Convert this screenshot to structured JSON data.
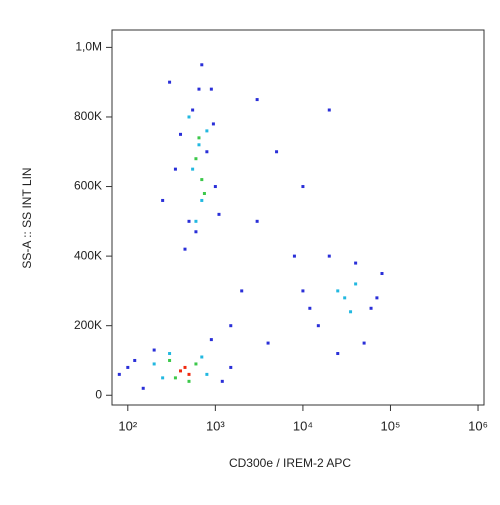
{
  "chart_data": {
    "type": "scatter",
    "x_label": "CD300e / IREM-2 APC",
    "y_label": "SS-A :: SS INT LIN",
    "x_scale": "log",
    "grid": false,
    "xlim": [
      66,
      1170000
    ],
    "ylim": [
      -28000,
      1050000
    ],
    "xticks": [
      {
        "value": 100,
        "label": "10²"
      },
      {
        "value": 1000,
        "label": "10³"
      },
      {
        "value": 10000,
        "label": "10⁴"
      },
      {
        "value": 100000,
        "label": "10⁵"
      },
      {
        "value": 1000000,
        "label": "10⁶"
      }
    ],
    "yticks": [
      0,
      {
        "value": 200000,
        "label": "200K"
      },
      {
        "value": 400000,
        "label": "400K"
      },
      {
        "value": 600000,
        "label": "600K"
      },
      {
        "value": 800000,
        "label": "800K"
      },
      {
        "value": 1000000,
        "label": "1,0M"
      }
    ],
    "series": [
      {
        "color": "#2a2fd8",
        "x": [
          300,
          400,
          500,
          900,
          1000,
          700,
          350,
          450,
          800,
          1100,
          600,
          550,
          250,
          950,
          650,
          80,
          120,
          200,
          1500,
          1200,
          150,
          900,
          100,
          10000,
          15000,
          60000,
          80000,
          20000,
          50000,
          25000,
          40000,
          12000,
          70000,
          3000,
          5000,
          2000,
          8000,
          1500,
          4000,
          10000,
          20000,
          3000
        ],
        "values": [
          900000,
          750000,
          500000,
          880000,
          600000,
          950000,
          650000,
          420000,
          700000,
          520000,
          470000,
          820000,
          560000,
          780000,
          880000,
          60000,
          100000,
          130000,
          80000,
          40000,
          20000,
          160000,
          80000,
          300000,
          200000,
          250000,
          350000,
          400000,
          150000,
          120000,
          380000,
          250000,
          280000,
          500000,
          700000,
          300000,
          400000,
          200000,
          150000,
          600000,
          820000,
          850000
        ]
      },
      {
        "color": "#22b8e0",
        "x": [
          500,
          650,
          700,
          550,
          800,
          600,
          200,
          250,
          800,
          300,
          700,
          30000,
          35000,
          40000,
          25000
        ],
        "values": [
          800000,
          720000,
          560000,
          650000,
          760000,
          500000,
          90000,
          50000,
          60000,
          120000,
          110000,
          280000,
          240000,
          320000,
          300000
        ]
      },
      {
        "color": "#3cc84a",
        "x": [
          600,
          700,
          650,
          750,
          300,
          350,
          600,
          500
        ],
        "values": [
          680000,
          620000,
          740000,
          580000,
          100000,
          50000,
          90000,
          40000
        ]
      },
      {
        "color": "#f02a10",
        "x": [
          400,
          450,
          500
        ],
        "values": [
          70000,
          80000,
          60000
        ]
      }
    ]
  }
}
